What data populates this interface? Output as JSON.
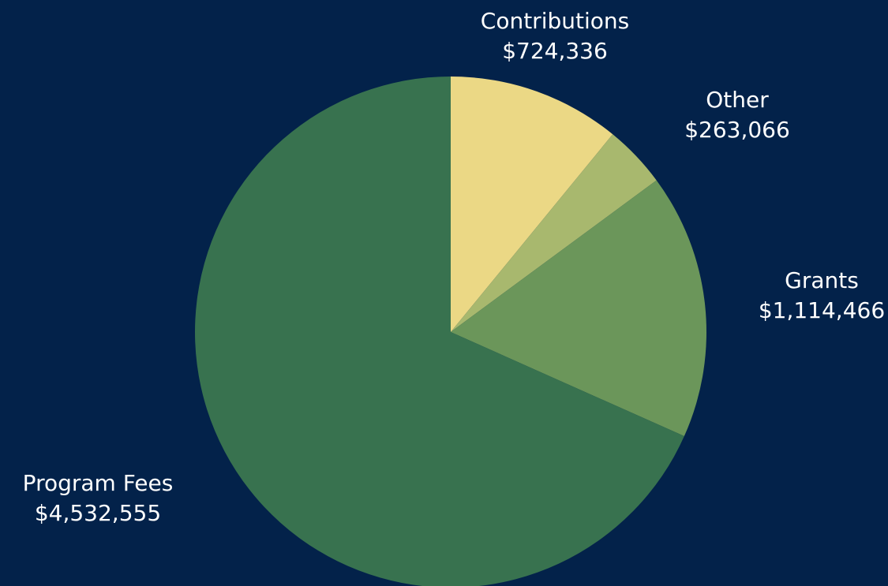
{
  "background": "#03224a",
  "chart_data": {
    "type": "pie",
    "title": "",
    "start_angle_deg": 0,
    "direction": "clockwise",
    "slices": [
      {
        "label": "Contributions",
        "value": 724336,
        "value_text": "$724,336",
        "color": "#ebd885"
      },
      {
        "label": "Other",
        "value": 263066,
        "value_text": "$263,066",
        "color": "#a8b86e"
      },
      {
        "label": "Grants",
        "value": 1114466,
        "value_text": "$1,114,466",
        "color": "#6b965a"
      },
      {
        "label": "Program Fees",
        "value": 4532555,
        "value_text": "$4,532,555",
        "color": "#38724f"
      }
    ]
  }
}
